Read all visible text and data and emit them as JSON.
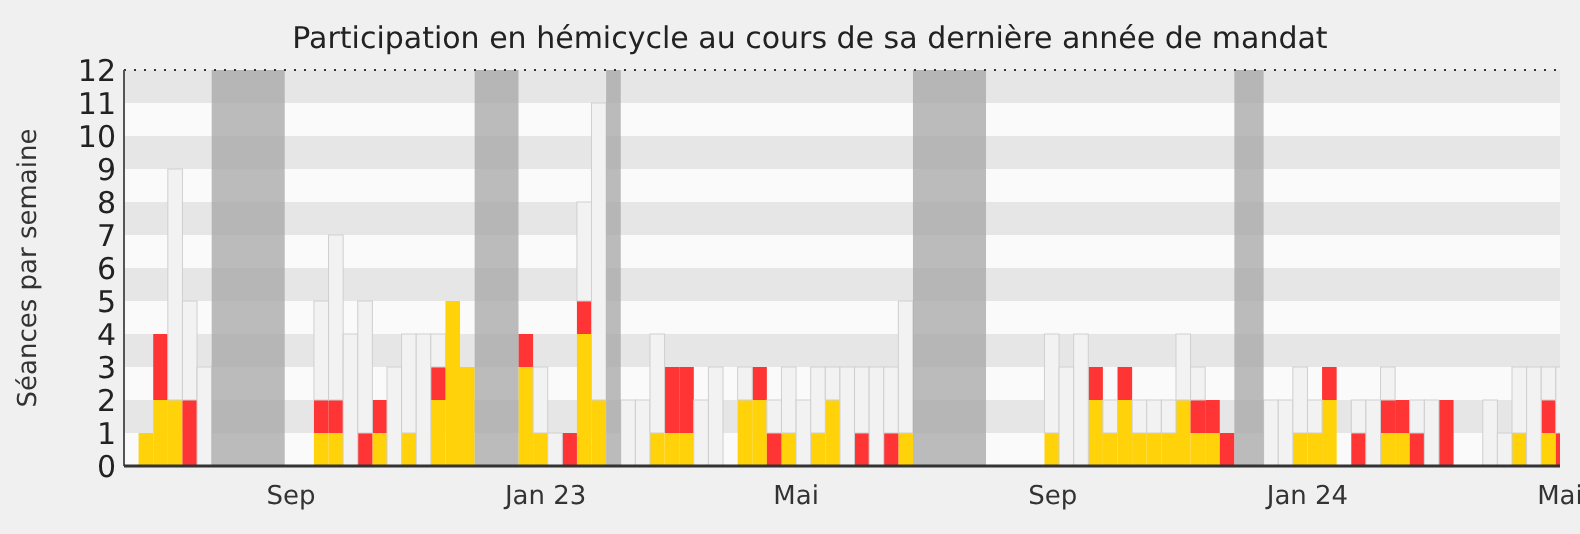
{
  "chart_data": {
    "type": "bar",
    "title": "Participation en hémicycle au cours de sa dernière année de mandat",
    "ylabel": "Séances par semaine",
    "stacked": true,
    "x": [
      "2022-06-20",
      "2022-06-27",
      "2022-07-04",
      "2022-07-11",
      "2022-07-18",
      "2022-07-25",
      "2022-08-01",
      "2022-08-08",
      "2022-08-15",
      "2022-08-22",
      "2022-08-29",
      "2022-09-05",
      "2022-09-12",
      "2022-09-19",
      "2022-09-26",
      "2022-10-03",
      "2022-10-10",
      "2022-10-17",
      "2022-10-24",
      "2022-10-31",
      "2022-11-07",
      "2022-11-14",
      "2022-11-21",
      "2022-11-28",
      "2022-12-05",
      "2022-12-12",
      "2022-12-19",
      "2022-12-26",
      "2023-01-02",
      "2023-01-09",
      "2023-01-16",
      "2023-01-23",
      "2023-01-30",
      "2023-02-06",
      "2023-02-13",
      "2023-02-20",
      "2023-02-27",
      "2023-03-06",
      "2023-03-13",
      "2023-03-20",
      "2023-03-27",
      "2023-04-03",
      "2023-04-10",
      "2023-04-17",
      "2023-04-24",
      "2023-05-01",
      "2023-05-08",
      "2023-05-15",
      "2023-05-22",
      "2023-05-29",
      "2023-06-05",
      "2023-06-12",
      "2023-06-19",
      "2023-06-26",
      "2023-07-03",
      "2023-07-10",
      "2023-07-17",
      "2023-07-24",
      "2023-07-31",
      "2023-08-07",
      "2023-08-14",
      "2023-08-21",
      "2023-08-28",
      "2023-09-04",
      "2023-09-11",
      "2023-09-18",
      "2023-09-25",
      "2023-10-02",
      "2023-10-09",
      "2023-10-16",
      "2023-10-23",
      "2023-10-30",
      "2023-11-06",
      "2023-11-13",
      "2023-11-20",
      "2023-11-27",
      "2023-12-04",
      "2023-12-11",
      "2023-12-18",
      "2023-12-25",
      "2024-01-01",
      "2024-01-08",
      "2024-01-15",
      "2024-01-22",
      "2024-01-29",
      "2024-02-05",
      "2024-02-12",
      "2024-02-19",
      "2024-02-26",
      "2024-03-04",
      "2024-03-11",
      "2024-03-18",
      "2024-03-25",
      "2024-04-01",
      "2024-04-08",
      "2024-04-15",
      "2024-04-22",
      "2024-04-29"
    ],
    "series": [
      {
        "color": "#ffd20a",
        "values": [
          1,
          2,
          2,
          0,
          0,
          0,
          0,
          0,
          0,
          0,
          0,
          0,
          1,
          1,
          0,
          0,
          1,
          0,
          1,
          0,
          2,
          5,
          3,
          0,
          0,
          0,
          3,
          1,
          0,
          0,
          4,
          2,
          0,
          0,
          0,
          1,
          1,
          1,
          0,
          0,
          0,
          2,
          2,
          0,
          1,
          0,
          1,
          2,
          0,
          0,
          0,
          0,
          1,
          0,
          0,
          0,
          0,
          0,
          0,
          0,
          0,
          0,
          1,
          0,
          0,
          2,
          1,
          2,
          1,
          1,
          1,
          2,
          1,
          1,
          0,
          0,
          0,
          0,
          0,
          1,
          1,
          2,
          0,
          0,
          0,
          1,
          1,
          0,
          0,
          0,
          0,
          0,
          0,
          0,
          1,
          0,
          1,
          0
        ]
      },
      {
        "color": "#ff3535",
        "values": [
          0,
          2,
          0,
          2,
          0,
          0,
          0,
          0,
          0,
          0,
          0,
          0,
          1,
          1,
          0,
          1,
          1,
          0,
          0,
          0,
          1,
          0,
          0,
          0,
          0,
          0,
          1,
          0,
          0,
          1,
          1,
          0,
          0,
          0,
          0,
          0,
          2,
          2,
          0,
          0,
          0,
          0,
          1,
          1,
          0,
          0,
          0,
          0,
          0,
          1,
          0,
          1,
          0,
          0,
          0,
          0,
          0,
          0,
          0,
          0,
          0,
          0,
          0,
          0,
          0,
          1,
          0,
          1,
          0,
          0,
          0,
          0,
          1,
          1,
          1,
          0,
          0,
          0,
          0,
          0,
          0,
          1,
          0,
          1,
          0,
          1,
          1,
          1,
          0,
          2,
          0,
          0,
          0,
          0,
          0,
          0,
          1,
          1
        ]
      },
      {
        "color": "#f2f2f2",
        "values": [
          0,
          0,
          7,
          3,
          3,
          0,
          0,
          0,
          0,
          0,
          0,
          0,
          3,
          5,
          4,
          4,
          0,
          3,
          3,
          4,
          1,
          0,
          0,
          0,
          0,
          0,
          0,
          2,
          1,
          0,
          3,
          9,
          0,
          2,
          2,
          3,
          0,
          0,
          2,
          3,
          0,
          1,
          0,
          1,
          2,
          2,
          2,
          1,
          3,
          2,
          3,
          2,
          4,
          0,
          0,
          0,
          0,
          0,
          0,
          0,
          0,
          0,
          3,
          3,
          4,
          0,
          1,
          0,
          1,
          1,
          1,
          2,
          1,
          0,
          0,
          0,
          0,
          2,
          2,
          2,
          1,
          0,
          0,
          1,
          2,
          1,
          0,
          1,
          2,
          0,
          0,
          0,
          2,
          1,
          2,
          3,
          1,
          2
        ]
      }
    ],
    "bands": [
      {
        "axis": "x",
        "from": "2022-07-25",
        "to": "2022-08-29",
        "color": "#a6a6a6"
      },
      {
        "axis": "x",
        "from": "2022-11-28",
        "to": "2022-12-19",
        "color": "#a6a6a6"
      },
      {
        "axis": "x",
        "from": "2023-01-30",
        "to": "2023-02-06",
        "color": "#a6a6a6"
      },
      {
        "axis": "x",
        "from": "2023-06-26",
        "to": "2023-07-31",
        "color": "#a6a6a6"
      },
      {
        "axis": "x",
        "from": "2023-11-27",
        "to": "2023-12-11",
        "color": "#a6a6a6"
      }
    ],
    "xlim": [
      "2022-06-13",
      "2024-05-01"
    ],
    "xticks": [
      {
        "value": "2022-09-01",
        "label": "Sep"
      },
      {
        "value": "2023-01-01",
        "label": "Jan 23"
      },
      {
        "value": "2023-05-01",
        "label": "Mai"
      },
      {
        "value": "2023-09-01",
        "label": "Sep"
      },
      {
        "value": "2024-01-01",
        "label": "Jan 24"
      },
      {
        "value": "2024-05-01",
        "label": "Mai"
      }
    ],
    "ylim": [
      0,
      12
    ],
    "yticks": [
      0,
      1,
      2,
      3,
      4,
      5,
      6,
      7,
      8,
      9,
      10,
      11,
      12
    ]
  }
}
